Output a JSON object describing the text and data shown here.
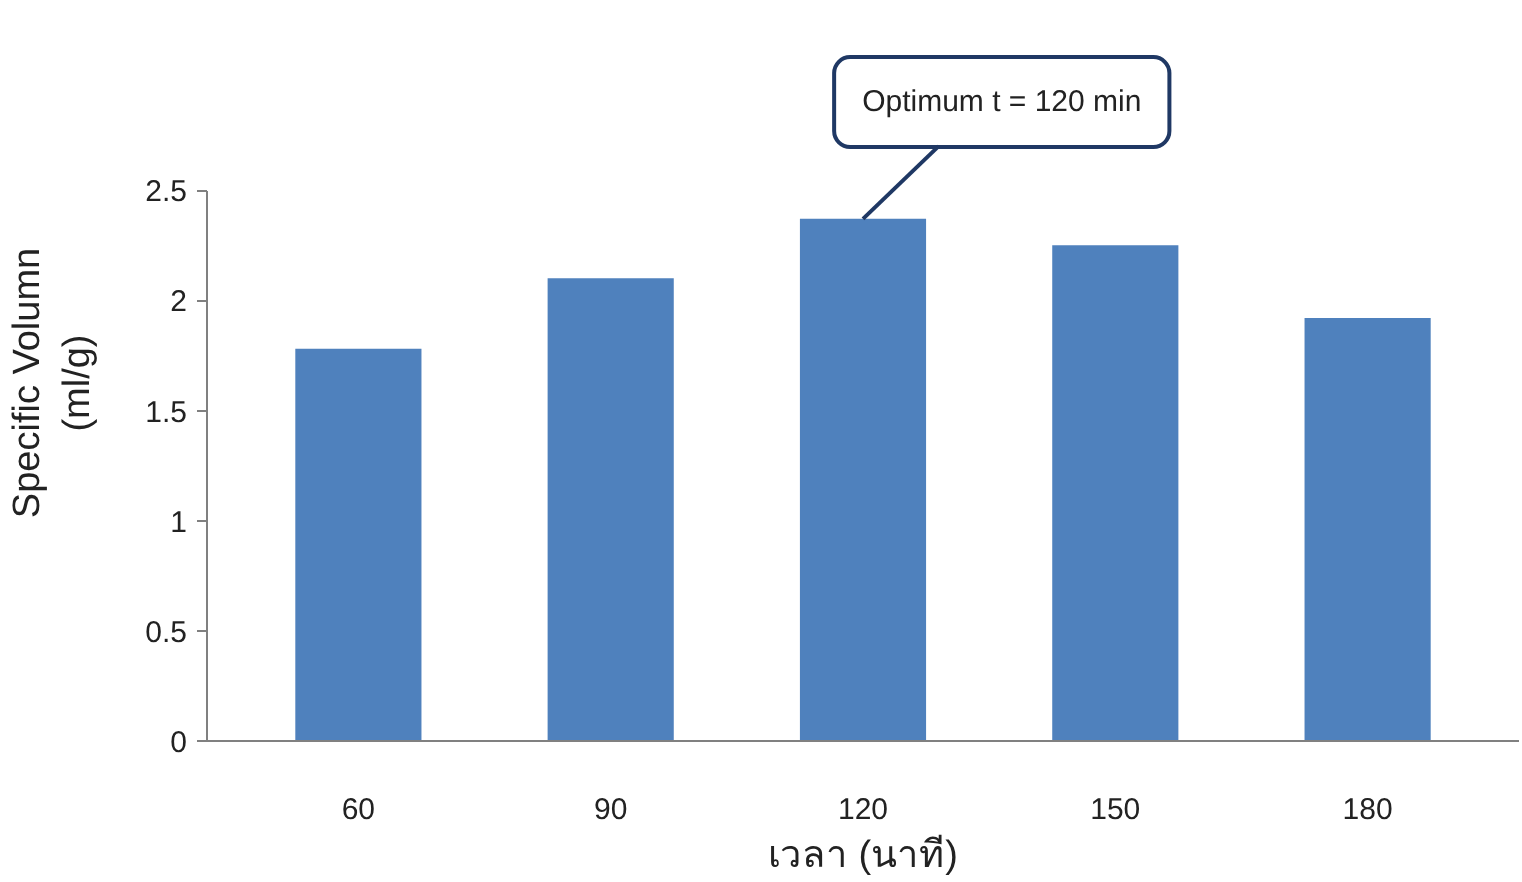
{
  "chart_data": {
    "type": "bar",
    "categories": [
      "60",
      "90",
      "120",
      "150",
      "180"
    ],
    "values": [
      1.78,
      2.1,
      2.37,
      2.25,
      1.92
    ],
    "color": "#4f81bd",
    "xlabel": "เวลา (นาที)",
    "ylabel": "Specific Volumn\n(ml/g)",
    "ylim": [
      0,
      2.5
    ],
    "yticks": [
      0,
      0.5,
      1,
      1.5,
      2,
      2.5
    ],
    "grid": false,
    "annotations": [
      {
        "text": "Optimum t = 120 min",
        "x": "120",
        "y": 2.37
      }
    ]
  }
}
